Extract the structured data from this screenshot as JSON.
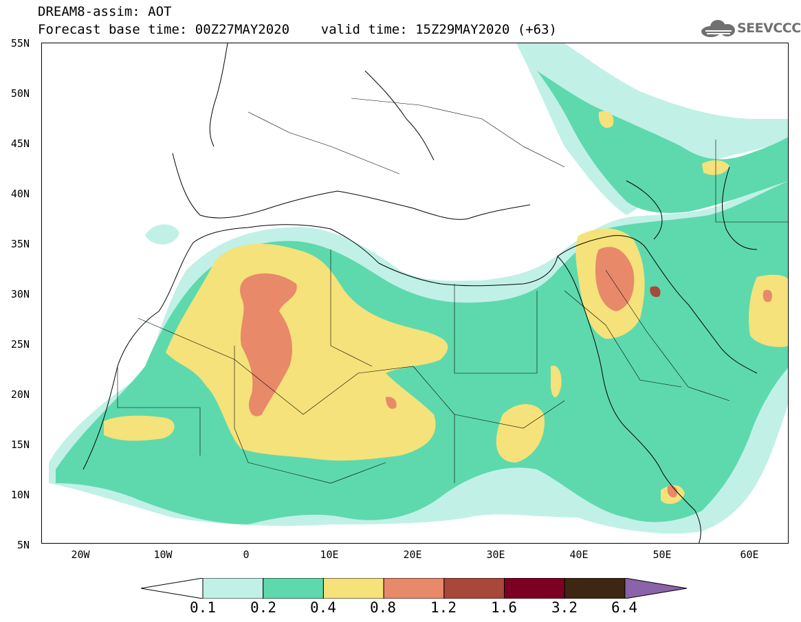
{
  "header": {
    "title_line1": "DREAM8-assim: AOT",
    "title_line2": "Forecast base time: 00Z27MAY2020    valid time: 15Z29MAY2020 (+63)"
  },
  "logo": {
    "text": "SEEVCCC",
    "icon": "cloud-icon",
    "color": "#707070"
  },
  "map": {
    "lat_range": [
      5,
      55
    ],
    "lon_range": [
      -25,
      65
    ],
    "lat_ticks": [
      "55N",
      "50N",
      "45N",
      "40N",
      "35N",
      "30N",
      "25N",
      "20N",
      "15N",
      "10N",
      "5N"
    ],
    "lon_ticks": [
      "20W",
      "10W",
      "0",
      "10E",
      "20E",
      "30E",
      "40E",
      "50E",
      "60E"
    ],
    "variable": "AOT"
  },
  "colorbar": {
    "labels": [
      "0.1",
      "0.2",
      "0.4",
      "0.8",
      "1.2",
      "1.6",
      "3.2",
      "6.4"
    ],
    "colors": [
      "#ffffff",
      "#c1f0e7",
      "#5ed9ad",
      "#f5e27a",
      "#e8896a",
      "#a9473a",
      "#7c0021",
      "#3d2612",
      "#8b63a8"
    ]
  }
}
